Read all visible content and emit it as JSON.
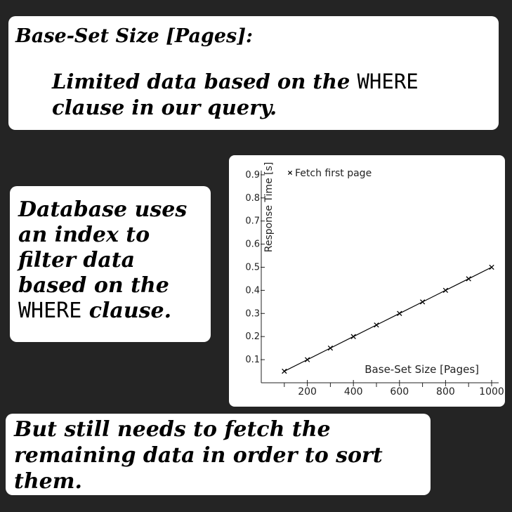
{
  "cards": {
    "top": {
      "title": "Base-Set Size [Pages]:",
      "text_before": "Limited data based on the ",
      "code": "WHERE",
      "text_after": " clause in our query."
    },
    "left": {
      "text_before": "Database uses an index to filter data based on the ",
      "code": "WHERE",
      "text_after": " clause."
    },
    "bottom": {
      "text": "But still needs to fetch the remaining data in order to sort them."
    }
  },
  "chart_data": {
    "type": "line",
    "title": "",
    "xlabel": "Base-Set Size [Pages]",
    "ylabel": "Response Time [s]",
    "xlim": [
      0,
      1000
    ],
    "ylim": [
      0,
      0.9
    ],
    "x_ticks": [
      200,
      400,
      600,
      800,
      1000
    ],
    "x_minor_ticks": [
      100,
      300,
      500,
      700,
      900
    ],
    "y_ticks": [
      0.1,
      0.2,
      0.3,
      0.4,
      0.5,
      0.6,
      0.7,
      0.8,
      0.9
    ],
    "x_tick_labels": [
      "200",
      "400",
      "600",
      "800",
      "1000"
    ],
    "y_tick_labels": [
      "0.1",
      "0.2",
      "0.3",
      "0.4",
      "0.5",
      "0.6",
      "0.7",
      "0.8",
      "0.9"
    ],
    "legend_position": "top-left",
    "grid": false,
    "series": [
      {
        "name": "Fetch first page",
        "marker": "x",
        "color": "#000000",
        "x": [
          100,
          200,
          300,
          400,
          500,
          600,
          700,
          800,
          900,
          1000
        ],
        "y": [
          0.05,
          0.1,
          0.15,
          0.2,
          0.25,
          0.3,
          0.35,
          0.4,
          0.45,
          0.5
        ]
      }
    ]
  }
}
